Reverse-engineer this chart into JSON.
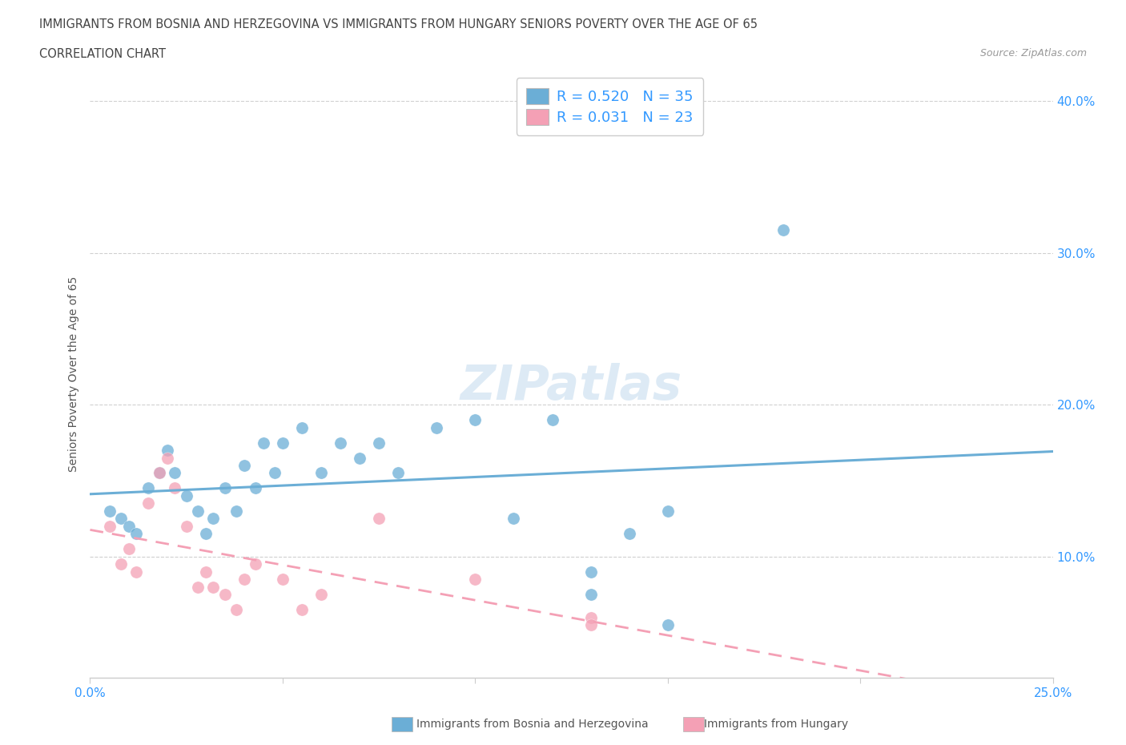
{
  "title_line1": "IMMIGRANTS FROM BOSNIA AND HERZEGOVINA VS IMMIGRANTS FROM HUNGARY SENIORS POVERTY OVER THE AGE OF 65",
  "title_line2": "CORRELATION CHART",
  "source_text": "Source: ZipAtlas.com",
  "ylabel": "Seniors Poverty Over the Age of 65",
  "xlim": [
    0.0,
    0.25
  ],
  "ylim": [
    0.02,
    0.42
  ],
  "xtick_positions": [
    0.0,
    0.05,
    0.1,
    0.15,
    0.2,
    0.25
  ],
  "xticklabels": [
    "0.0%",
    "",
    "",
    "",
    "",
    "25.0%"
  ],
  "ytick_positions": [
    0.1,
    0.2,
    0.3,
    0.4
  ],
  "ytick_labels": [
    "10.0%",
    "20.0%",
    "30.0%",
    "40.0%"
  ],
  "bosnia_color": "#6baed6",
  "hungary_color": "#f4a0b5",
  "bosnia_R": 0.52,
  "bosnia_N": 35,
  "hungary_R": 0.031,
  "hungary_N": 23,
  "bosnia_scatter_x": [
    0.005,
    0.008,
    0.01,
    0.012,
    0.015,
    0.018,
    0.02,
    0.022,
    0.025,
    0.028,
    0.03,
    0.032,
    0.035,
    0.038,
    0.04,
    0.043,
    0.045,
    0.048,
    0.05,
    0.055,
    0.06,
    0.065,
    0.07,
    0.075,
    0.08,
    0.09,
    0.1,
    0.11,
    0.12,
    0.13,
    0.14,
    0.15,
    0.18,
    0.13,
    0.15
  ],
  "bosnia_scatter_y": [
    0.13,
    0.125,
    0.12,
    0.115,
    0.145,
    0.155,
    0.17,
    0.155,
    0.14,
    0.13,
    0.115,
    0.125,
    0.145,
    0.13,
    0.16,
    0.145,
    0.175,
    0.155,
    0.175,
    0.185,
    0.155,
    0.175,
    0.165,
    0.175,
    0.155,
    0.185,
    0.19,
    0.125,
    0.19,
    0.075,
    0.115,
    0.13,
    0.315,
    0.09,
    0.055
  ],
  "hungary_scatter_x": [
    0.005,
    0.008,
    0.01,
    0.012,
    0.015,
    0.018,
    0.02,
    0.022,
    0.025,
    0.028,
    0.03,
    0.032,
    0.035,
    0.038,
    0.04,
    0.043,
    0.05,
    0.055,
    0.06,
    0.075,
    0.1,
    0.13,
    0.13
  ],
  "hungary_scatter_y": [
    0.12,
    0.095,
    0.105,
    0.09,
    0.135,
    0.155,
    0.165,
    0.145,
    0.12,
    0.08,
    0.09,
    0.08,
    0.075,
    0.065,
    0.085,
    0.095,
    0.085,
    0.065,
    0.075,
    0.125,
    0.085,
    0.06,
    0.055
  ],
  "watermark": "ZIPatlas",
  "background_color": "#ffffff",
  "grid_color": "#d0d0d0",
  "tick_label_color": "#3399ff"
}
